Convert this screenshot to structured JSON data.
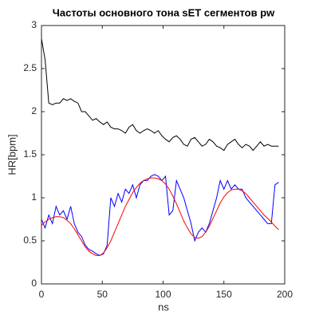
{
  "chart_data": {
    "type": "line",
    "title": "Частоты основного тона sET сегментов pw",
    "x_label": "ns",
    "y_label": "HR[bpm]",
    "xlim": [
      0,
      200
    ],
    "xticks": [
      0,
      50,
      100,
      150,
      200
    ],
    "ylim": [
      0,
      3
    ],
    "yticks": [
      0,
      0.5,
      1,
      1.5,
      2,
      2.5,
      3
    ],
    "grid": false,
    "x": [
      0,
      3,
      6,
      9,
      12,
      15,
      18,
      21,
      24,
      27,
      30,
      33,
      36,
      39,
      42,
      45,
      48,
      51,
      54,
      57,
      60,
      63,
      66,
      69,
      72,
      75,
      78,
      81,
      84,
      87,
      90,
      93,
      96,
      99,
      102,
      105,
      108,
      111,
      114,
      117,
      120,
      123,
      126,
      129,
      132,
      135,
      138,
      141,
      144,
      147,
      150,
      153,
      156,
      159,
      162,
      165,
      168,
      171,
      174,
      177,
      180,
      183,
      186,
      189,
      192,
      195
    ],
    "series": [
      {
        "color": "#000000",
        "values": [
          2.85,
          2.6,
          2.1,
          2.08,
          2.1,
          2.1,
          2.15,
          2.13,
          2.15,
          2.12,
          2.1,
          2.0,
          2.0,
          1.95,
          1.9,
          1.92,
          1.88,
          1.85,
          1.88,
          1.82,
          1.8,
          1.8,
          1.78,
          1.75,
          1.82,
          1.85,
          1.78,
          1.75,
          1.78,
          1.8,
          1.78,
          1.75,
          1.78,
          1.72,
          1.68,
          1.65,
          1.7,
          1.72,
          1.68,
          1.62,
          1.6,
          1.68,
          1.7,
          1.65,
          1.6,
          1.62,
          1.68,
          1.65,
          1.6,
          1.58,
          1.55,
          1.62,
          1.65,
          1.68,
          1.62,
          1.58,
          1.62,
          1.6,
          1.55,
          1.6,
          1.65,
          1.6,
          1.62,
          1.6,
          1.6,
          1.6
        ]
      },
      {
        "color": "#0000ff",
        "values": [
          0.75,
          0.65,
          0.8,
          0.7,
          0.9,
          0.8,
          0.85,
          0.75,
          0.9,
          0.7,
          0.6,
          0.55,
          0.45,
          0.4,
          0.38,
          0.35,
          0.33,
          0.35,
          0.45,
          1.0,
          0.9,
          1.05,
          0.95,
          1.1,
          1.05,
          1.15,
          1.0,
          1.15,
          1.2,
          1.2,
          1.25,
          1.27,
          1.25,
          1.2,
          1.25,
          0.8,
          0.85,
          1.2,
          1.1,
          1.0,
          0.85,
          0.7,
          0.5,
          0.6,
          0.65,
          0.6,
          0.7,
          0.85,
          1.0,
          1.2,
          1.1,
          1.2,
          1.1,
          1.15,
          1.1,
          1.1,
          1.0,
          0.95,
          0.9,
          0.85,
          0.8,
          0.75,
          0.7,
          0.7,
          1.15,
          1.18
        ]
      },
      {
        "color": "#ff0000",
        "values": [
          0.68,
          0.72,
          0.75,
          0.77,
          0.78,
          0.78,
          0.77,
          0.74,
          0.7,
          0.64,
          0.57,
          0.5,
          0.43,
          0.38,
          0.35,
          0.33,
          0.33,
          0.36,
          0.42,
          0.5,
          0.6,
          0.7,
          0.8,
          0.9,
          0.98,
          1.06,
          1.12,
          1.17,
          1.2,
          1.22,
          1.23,
          1.23,
          1.22,
          1.2,
          1.16,
          1.1,
          1.02,
          0.93,
          0.83,
          0.73,
          0.65,
          0.58,
          0.54,
          0.53,
          0.55,
          0.6,
          0.67,
          0.76,
          0.85,
          0.94,
          1.01,
          1.06,
          1.09,
          1.1,
          1.1,
          1.08,
          1.05,
          1.0,
          0.95,
          0.9,
          0.85,
          0.8,
          0.76,
          0.72,
          0.67,
          0.63
        ]
      }
    ]
  }
}
